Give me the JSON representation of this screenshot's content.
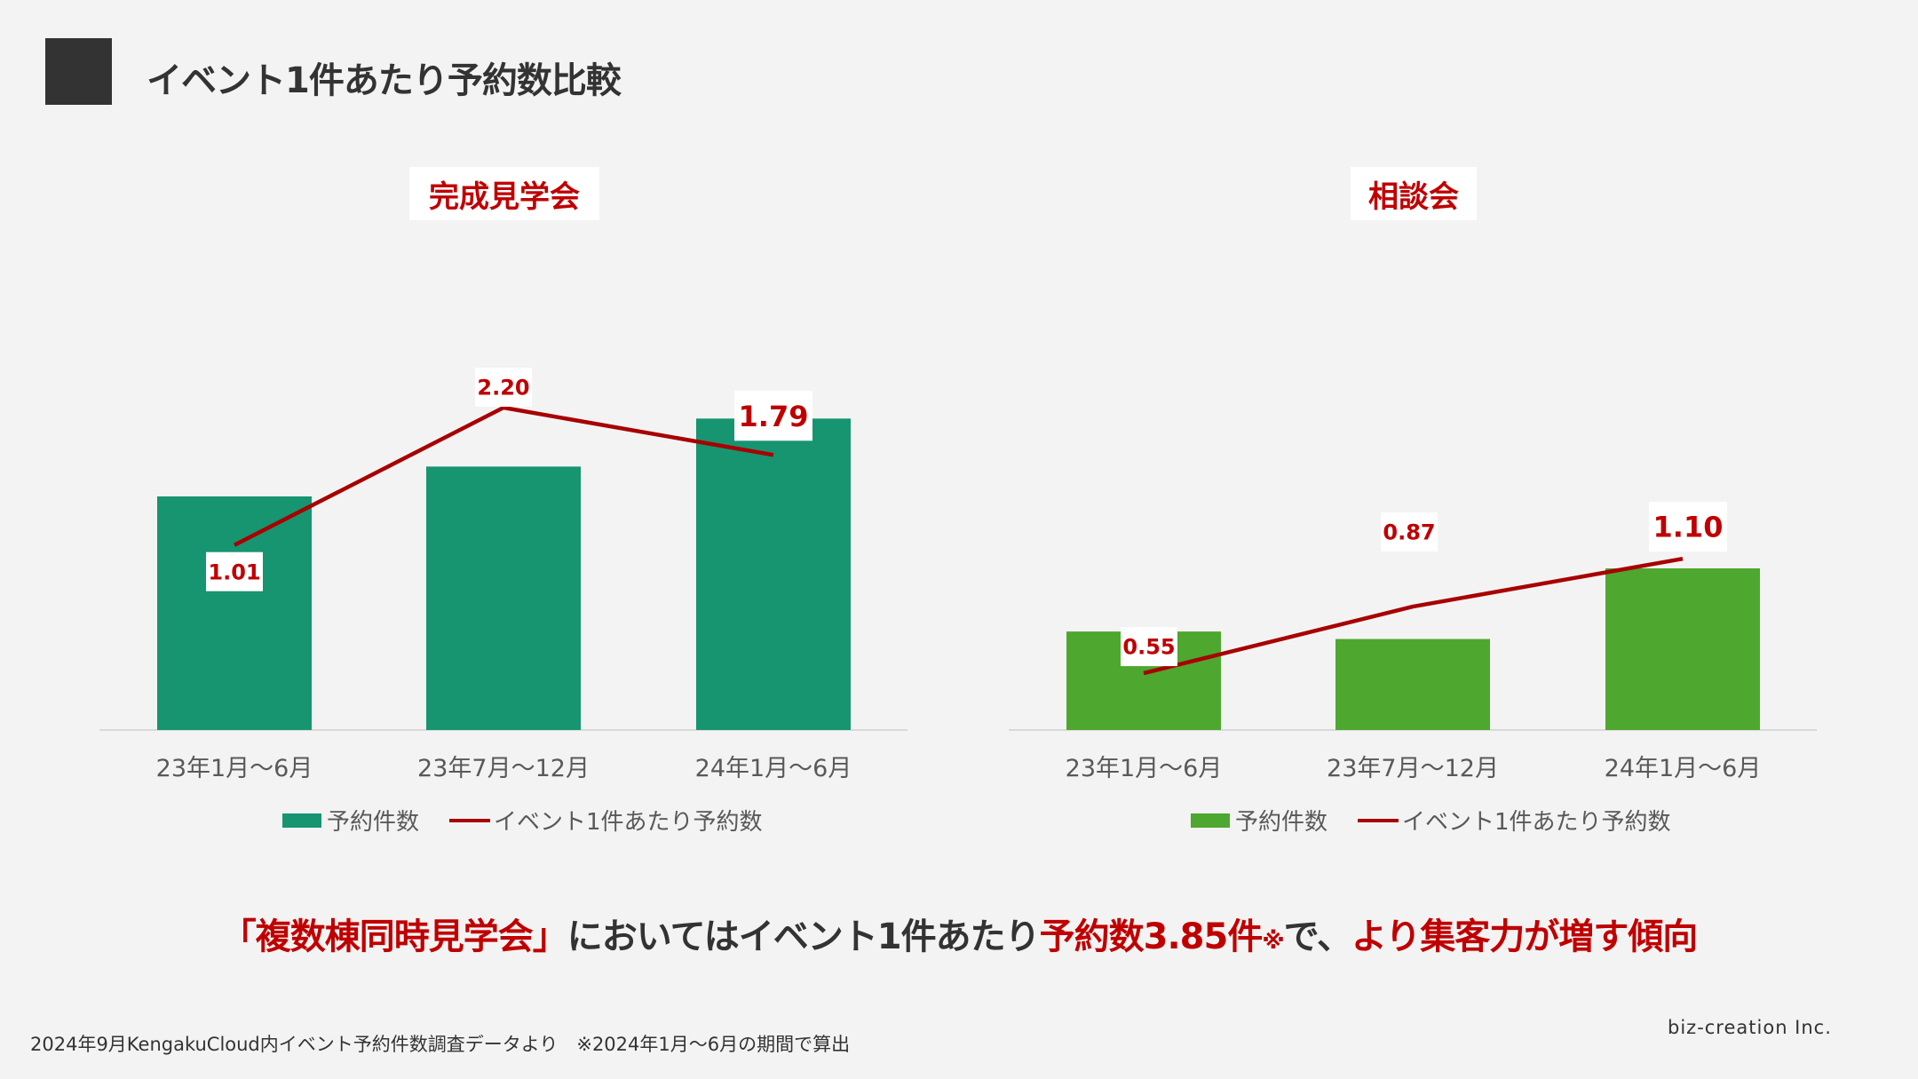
{
  "page": {
    "title": "イベント1件あたり予約数比較",
    "conclusion_1": "「複数棟同時見学会」",
    "conclusion_2": "においてはイベント1件あたり",
    "conclusion_3": "予約数3.85件",
    "conclusion_4": "※",
    "conclusion_5": "で、",
    "conclusion_6": "より集客力が増す傾向",
    "footnote": "2024年9月KengakuCloud内イベント予約件数調査データより　※2024年1月～6月の期間で算出",
    "company": "biz-creation Inc."
  },
  "colors": {
    "title_square": "#333333",
    "accent_red": "#c00000",
    "line_red": "#a80000",
    "bar_chart1": "#169570",
    "bar_chart2": "#4ea72e"
  },
  "chart_data": [
    {
      "type": "bar",
      "title": "完成見学会",
      "categories": [
        "23年1月～6月",
        "23年7月～12月",
        "24年1月～6月"
      ],
      "series": [
        {
          "name": "予約件数",
          "type": "bar",
          "values": [
            360,
            406,
            480
          ]
        },
        {
          "name": "イベント1件あたり予約数",
          "type": "line",
          "values": [
            1.01,
            2.2,
            1.79
          ],
          "labels": [
            "1.01",
            "2.20",
            "1.79"
          ]
        }
      ],
      "legend": [
        "予約件数",
        "イベント1件あたり予約数"
      ],
      "legend_position": "bottom"
    },
    {
      "type": "bar",
      "title": "相談会",
      "categories": [
        "23年1月～6月",
        "23年7月～12月",
        "24年1月～6月"
      ],
      "series": [
        {
          "name": "予約件数",
          "type": "bar",
          "values": [
            184,
            170,
            302
          ]
        },
        {
          "name": "イベント1件あたり予約数",
          "type": "line",
          "values": [
            0.55,
            0.87,
            1.1
          ],
          "labels": [
            "0.55",
            "0.87",
            "1.10"
          ]
        }
      ],
      "legend": [
        "予約件数",
        "イベント1件あたり予約数"
      ],
      "legend_position": "bottom"
    }
  ]
}
